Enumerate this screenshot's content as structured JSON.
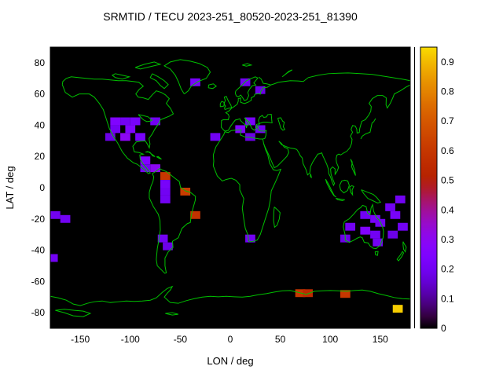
{
  "chart_data": {
    "type": "heatmap",
    "title": "SRMTID / TECU 2023-251_80520-2023-251_81390",
    "xlabel": "LON / deg",
    "ylabel": "LAT / deg",
    "xlim": [
      -180,
      180
    ],
    "ylim": [
      -90,
      90
    ],
    "xticks": [
      -150,
      -100,
      -50,
      0,
      50,
      100,
      150
    ],
    "yticks": [
      -80,
      -60,
      -40,
      -20,
      0,
      20,
      40,
      60,
      80
    ],
    "grid": false,
    "plot_background": "#000000",
    "coastline_color": "#00c000",
    "frame_color": "#000000",
    "colorbar": {
      "min": 0,
      "max": 0.95,
      "position": "right",
      "palette": "gnuplot-pm3d black-violet-red-orange-yellow",
      "ticks": [
        {
          "value": 0.0,
          "label": "0"
        },
        {
          "value": 0.1,
          "label": "0.1"
        },
        {
          "value": 0.2,
          "label": "0.2"
        },
        {
          "value": 0.3,
          "label": "0.3"
        },
        {
          "value": 0.4,
          "label": "0.4"
        },
        {
          "value": 0.5,
          "label": "0.5"
        },
        {
          "value": 0.6,
          "label": "0.6"
        },
        {
          "value": 0.7,
          "label": "0.7"
        },
        {
          "value": 0.8,
          "label": "0.8"
        },
        {
          "value": 0.9,
          "label": "0.9"
        }
      ]
    },
    "cell_size_deg": {
      "lon": 10,
      "lat": 5
    },
    "cells": [
      {
        "lon": -35,
        "lat": 67.5,
        "value": 0.22
      },
      {
        "lon": 15,
        "lat": 67.5,
        "value": 0.2
      },
      {
        "lon": 30,
        "lat": 62.5,
        "value": 0.18
      },
      {
        "lon": -115,
        "lat": 42.5,
        "value": 0.25
      },
      {
        "lon": -105,
        "lat": 42.5,
        "value": 0.2
      },
      {
        "lon": -95,
        "lat": 42.5,
        "value": 0.22
      },
      {
        "lon": -75,
        "lat": 42.5,
        "value": 0.2
      },
      {
        "lon": -115,
        "lat": 37.5,
        "value": 0.2
      },
      {
        "lon": -100,
        "lat": 37.5,
        "value": 0.25
      },
      {
        "lon": -120,
        "lat": 32.5,
        "value": 0.18
      },
      {
        "lon": -105,
        "lat": 32.5,
        "value": 0.3
      },
      {
        "lon": -90,
        "lat": 32.5,
        "value": 0.22
      },
      {
        "lon": -15,
        "lat": 32.5,
        "value": 0.2
      },
      {
        "lon": 10,
        "lat": 37.5,
        "value": 0.25
      },
      {
        "lon": 20,
        "lat": 42.5,
        "value": 0.22
      },
      {
        "lon": 30,
        "lat": 37.5,
        "value": 0.2
      },
      {
        "lon": 20,
        "lat": 32.5,
        "value": 0.18
      },
      {
        "lon": -85,
        "lat": 17.5,
        "value": 0.25
      },
      {
        "lon": -85,
        "lat": 12.5,
        "value": 0.2
      },
      {
        "lon": -75,
        "lat": 12.5,
        "value": 0.3
      },
      {
        "lon": -65,
        "lat": 7.5,
        "value": 0.6
      },
      {
        "lon": -65,
        "lat": 2.5,
        "value": 0.22
      },
      {
        "lon": -65,
        "lat": -2.5,
        "value": 0.2
      },
      {
        "lon": -65,
        "lat": -7.5,
        "value": 0.2
      },
      {
        "lon": -45,
        "lat": -2.5,
        "value": 0.62
      },
      {
        "lon": -35,
        "lat": -17.5,
        "value": 0.58
      },
      {
        "lon": -175,
        "lat": -17.5,
        "value": 0.2
      },
      {
        "lon": -165,
        "lat": -20,
        "value": 0.2
      },
      {
        "lon": -177.5,
        "lat": -45,
        "value": 0.2
      },
      {
        "lon": -67.5,
        "lat": -32.5,
        "value": 0.2
      },
      {
        "lon": -62.5,
        "lat": -37.5,
        "value": 0.18
      },
      {
        "lon": 20,
        "lat": -32.5,
        "value": 0.2
      },
      {
        "lon": 115,
        "lat": -32.5,
        "value": 0.18
      },
      {
        "lon": 120,
        "lat": -25,
        "value": 0.2
      },
      {
        "lon": 135,
        "lat": -17.5,
        "value": 0.2
      },
      {
        "lon": 135,
        "lat": -27.5,
        "value": 0.25
      },
      {
        "lon": 145,
        "lat": -20,
        "value": 0.22
      },
      {
        "lon": 145,
        "lat": -30,
        "value": 0.2
      },
      {
        "lon": 150,
        "lat": -22.5,
        "value": 0.2
      },
      {
        "lon": 147.5,
        "lat": -35,
        "value": 0.2
      },
      {
        "lon": 160,
        "lat": -12.5,
        "value": 0.2
      },
      {
        "lon": 165,
        "lat": -17.5,
        "value": 0.22
      },
      {
        "lon": 170,
        "lat": -7.5,
        "value": 0.2
      },
      {
        "lon": 172.5,
        "lat": -25,
        "value": 0.2
      },
      {
        "lon": 162.5,
        "lat": -30,
        "value": 0.18
      },
      {
        "lon": 70,
        "lat": -67.5,
        "value": 0.6
      },
      {
        "lon": 77.5,
        "lat": -67.5,
        "value": 0.55
      },
      {
        "lon": 115,
        "lat": -68,
        "value": 0.6
      },
      {
        "lon": 167.5,
        "lat": -77.5,
        "value": 0.93
      }
    ]
  }
}
